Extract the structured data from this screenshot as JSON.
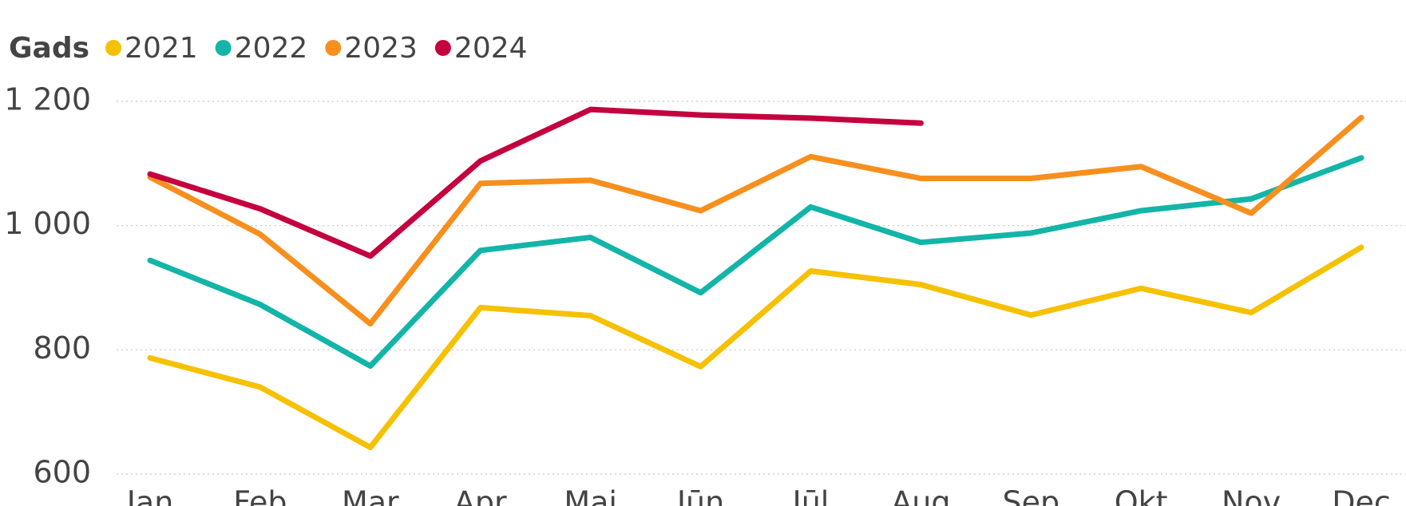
{
  "chart_data": {
    "type": "line",
    "legend_title": "Gads",
    "categories": [
      "Jan",
      "Feb",
      "Mar",
      "Apr",
      "Mai",
      "Jūn",
      "Jūl",
      "Aug",
      "Sep",
      "Okt",
      "Nov",
      "Dec"
    ],
    "series": [
      {
        "name": "2021",
        "color": "#f5c100",
        "values": [
          787,
          740,
          643,
          868,
          855,
          773,
          927,
          905,
          856,
          899,
          860,
          965
        ]
      },
      {
        "name": "2022",
        "color": "#12b5a7",
        "values": [
          944,
          873,
          774,
          960,
          981,
          892,
          1030,
          973,
          988,
          1024,
          1043,
          1109
        ]
      },
      {
        "name": "2023",
        "color": "#f78f1e",
        "values": [
          1078,
          986,
          842,
          1068,
          1073,
          1024,
          1111,
          1076,
          1076,
          1095,
          1020,
          1174
        ]
      },
      {
        "name": "2024",
        "color": "#c4003e",
        "values": [
          1083,
          1027,
          951,
          1104,
          1187,
          1178,
          1173,
          1165,
          null,
          null,
          null,
          null
        ]
      }
    ],
    "ylim": [
      600,
      1200
    ],
    "yticks": [
      600,
      800,
      {
        "value": 1000,
        "label": "1 000"
      },
      {
        "value": 1200,
        "label": "1 200"
      }
    ],
    "grid": true
  }
}
